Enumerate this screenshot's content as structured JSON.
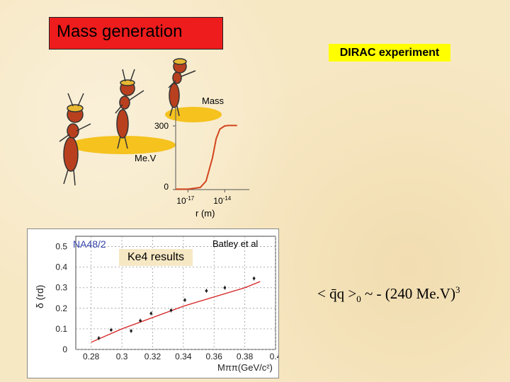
{
  "slide": {
    "title": "Mass generation",
    "experiment": "DIRAC experiment",
    "reference": "Batley et al",
    "ke4_label": "Ke4 results",
    "condensate": {
      "open": "< ",
      "qbar": "q̄",
      "q": "q",
      "close": " >",
      "subscript": "0",
      "relation": " ~ - (240 Me.V)",
      "exponent": "3"
    }
  },
  "colors": {
    "title_bg": "#ee1c1c",
    "dirac_bg": "#ffff00",
    "curve": "#d2451e",
    "fit_line": "#d62020",
    "na48_label": "#3344aa",
    "ant_body": "#b8401f",
    "ground": "#f5c21e"
  },
  "chart_data": [
    {
      "type": "line",
      "title": "",
      "ylabel": "Mass",
      "y_tick_labels": [
        "0",
        "300"
      ],
      "y_unit": "Me.V",
      "xlabel": "r (m)",
      "x_tick_labels": [
        "10-17",
        "10-14"
      ],
      "xscale": "log",
      "xlim": [
        1e-18,
        1e-12
      ],
      "ylim": [
        0,
        360
      ],
      "series": [
        {
          "x": [
            1e-18,
            1e-17,
            1e-16,
            3e-16,
            1e-15,
            2e-15,
            4e-15,
            1e-14,
            2e-14,
            1e-13
          ],
          "y": [
            2,
            2,
            10,
            40,
            150,
            240,
            285,
            300,
            302,
            302
          ]
        }
      ]
    },
    {
      "type": "scatter",
      "title": "",
      "legend_label": "NA48/2",
      "xlabel": "Mππ(GeV/c²)",
      "ylabel": "δ (rd)",
      "xlim": [
        0.27,
        0.4
      ],
      "ylim": [
        0,
        0.55
      ],
      "x_ticks": [
        "0.28",
        "0.3",
        "0.32",
        "0.34",
        "0.36",
        "0.38",
        "0.4"
      ],
      "y_ticks": [
        "0",
        "0.1",
        "0.2",
        "0.3",
        "0.4",
        "0.5"
      ],
      "grid": true,
      "points": [
        {
          "x": 0.285,
          "y": 0.055
        },
        {
          "x": 0.293,
          "y": 0.095
        },
        {
          "x": 0.306,
          "y": 0.09
        },
        {
          "x": 0.312,
          "y": 0.14
        },
        {
          "x": 0.319,
          "y": 0.175
        },
        {
          "x": 0.332,
          "y": 0.19
        },
        {
          "x": 0.341,
          "y": 0.24
        },
        {
          "x": 0.355,
          "y": 0.285
        },
        {
          "x": 0.367,
          "y": 0.3
        },
        {
          "x": 0.386,
          "y": 0.345
        }
      ],
      "fit": {
        "x": [
          0.28,
          0.3,
          0.32,
          0.34,
          0.36,
          0.38,
          0.39
        ],
        "y": [
          0.035,
          0.1,
          0.155,
          0.21,
          0.255,
          0.3,
          0.33
        ]
      }
    }
  ]
}
